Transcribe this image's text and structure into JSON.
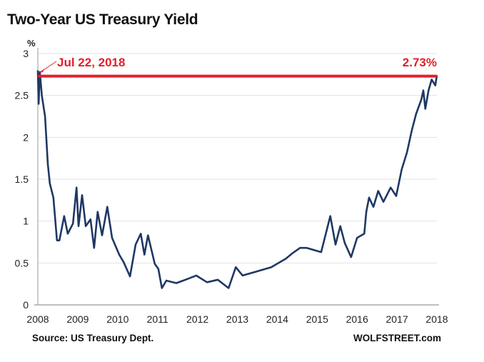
{
  "chart_data": {
    "type": "line",
    "title": "Two-Year US Treasury Yield",
    "ylabel": "%",
    "xlabel": "",
    "ylim": [
      0,
      3
    ],
    "xlim": [
      2008,
      2018
    ],
    "yticks": [
      "0",
      "0.5",
      "1",
      "1.5",
      "2",
      "2.5",
      "3"
    ],
    "xticks": [
      "2008",
      "2009",
      "2010",
      "2011",
      "2012",
      "2013",
      "2014",
      "2015",
      "2016",
      "2017",
      "2018"
    ],
    "grid": "horizontal",
    "line_color": "#1f3864",
    "series": [
      {
        "x": [
          2008.0,
          2008.02,
          2008.05,
          2008.1,
          2008.18,
          2008.25,
          2008.3,
          2008.39,
          2008.48,
          2008.54,
          2008.66,
          2008.75,
          2008.88,
          2008.97,
          2009.02,
          2009.11,
          2009.2,
          2009.32,
          2009.41,
          2009.5,
          2009.61,
          2009.74,
          2009.86,
          2010.04,
          2010.15,
          2010.31,
          2010.45,
          2010.58,
          2010.67,
          2010.76,
          2010.93,
          2011.02,
          2011.11,
          2011.22,
          2011.47,
          2011.7,
          2011.97,
          2012.24,
          2012.51,
          2012.78,
          2012.96,
          2013.13,
          2013.49,
          2013.85,
          2014.21,
          2014.39,
          2014.57,
          2014.74,
          2015.1,
          2015.33,
          2015.46,
          2015.58,
          2015.69,
          2015.85,
          2016.0,
          2016.18,
          2016.23,
          2016.3,
          2016.41,
          2016.53,
          2016.66,
          2016.84,
          2016.98,
          2017.12,
          2017.25,
          2017.37,
          2017.48,
          2017.61,
          2017.66,
          2017.71,
          2017.79,
          2017.87,
          2017.96,
          2018.0
        ],
        "values": [
          2.8,
          2.4,
          2.78,
          2.5,
          2.25,
          1.68,
          1.45,
          1.28,
          0.77,
          0.77,
          1.06,
          0.85,
          0.97,
          1.4,
          0.94,
          1.31,
          0.94,
          1.02,
          0.68,
          1.11,
          0.83,
          1.17,
          0.8,
          0.6,
          0.51,
          0.34,
          0.72,
          0.85,
          0.6,
          0.83,
          0.49,
          0.43,
          0.2,
          0.29,
          0.26,
          0.3,
          0.35,
          0.27,
          0.3,
          0.2,
          0.45,
          0.35,
          0.4,
          0.45,
          0.55,
          0.62,
          0.68,
          0.68,
          0.63,
          1.06,
          0.72,
          0.94,
          0.74,
          0.57,
          0.8,
          0.85,
          1.11,
          1.28,
          1.17,
          1.36,
          1.23,
          1.4,
          1.3,
          1.62,
          1.82,
          2.08,
          2.28,
          2.45,
          2.56,
          2.34,
          2.56,
          2.69,
          2.62,
          2.74
        ]
      }
    ],
    "reference_line": {
      "value": 2.73,
      "color": "#e0202a",
      "label_left": "Jul 22, 2018",
      "label_right": "2.73%"
    },
    "source": "Source: US Treasury Dept.",
    "credit": "WOLFSTREET.com"
  }
}
